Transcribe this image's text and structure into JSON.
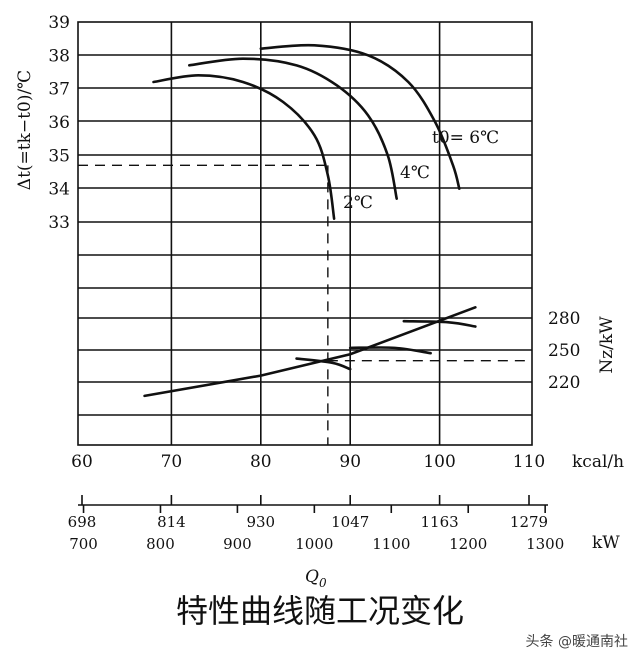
{
  "caption": "特性曲线随工况变化",
  "watermark": "头条 @暖通南社",
  "chart_data": {
    "type": "line",
    "x_axis": {
      "unit_label": "kcal/h",
      "ticks": [
        "60",
        "70",
        "80",
        "90",
        "100",
        "110"
      ],
      "range": [
        60,
        110
      ]
    },
    "x_axis_secondary_top": {
      "ticks": [
        "698",
        "814",
        "930",
        "1047",
        "1163",
        "1279"
      ]
    },
    "x_axis_secondary_bottom": {
      "unit_label": "kW",
      "ticks": [
        "700",
        "800",
        "900",
        "1000",
        "1100",
        "1200",
        "1300"
      ]
    },
    "x_title": "Q0",
    "y_axis_left": {
      "label": "Δt(=tk−t0)/℃",
      "ticks": [
        "39",
        "38",
        "37",
        "36",
        "35",
        "34",
        "33"
      ],
      "range": [
        33,
        39
      ]
    },
    "y_axis_right": {
      "label": "Nz/kW",
      "ticks": [
        "280",
        "250",
        "220"
      ]
    },
    "series": [
      {
        "name": "2℃",
        "points": [
          [
            68,
            37.2
          ],
          [
            73,
            37.4
          ],
          [
            78,
            37.2
          ],
          [
            82.5,
            36.6
          ],
          [
            86,
            35.6
          ],
          [
            87.5,
            34.4
          ],
          [
            88.2,
            33.1
          ]
        ]
      },
      {
        "name": "4℃",
        "points": [
          [
            72,
            37.7
          ],
          [
            78,
            37.9
          ],
          [
            84,
            37.7
          ],
          [
            88.5,
            37.1
          ],
          [
            92,
            36.2
          ],
          [
            94.2,
            35.0
          ],
          [
            95.2,
            33.7
          ]
        ]
      },
      {
        "name": "t0= 6℃",
        "points": [
          [
            80,
            38.2
          ],
          [
            86,
            38.3
          ],
          [
            92,
            38.0
          ],
          [
            96.5,
            37.2
          ],
          [
            99.5,
            36.0
          ],
          [
            101.5,
            34.7
          ],
          [
            102.2,
            34.0
          ]
        ]
      }
    ],
    "power_curve": {
      "points": [
        [
          67,
          207
        ],
        [
          80,
          226
        ],
        [
          90,
          246
        ],
        [
          104,
          290
        ]
      ],
      "branches": [
        {
          "points": [
            [
              84,
              242
            ],
            [
              88,
              238
            ],
            [
              90,
              232
            ]
          ]
        },
        {
          "points": [
            [
              90,
              252
            ],
            [
              95,
              252
            ],
            [
              99,
              247
            ]
          ]
        },
        {
          "points": [
            [
              96,
              277
            ],
            [
              101,
              276
            ],
            [
              104,
              272
            ]
          ]
        }
      ]
    },
    "operating_point": {
      "x": 87.5,
      "dt": 34.7,
      "power": 240
    },
    "grid": true,
    "legend": "labels-on-curves"
  }
}
